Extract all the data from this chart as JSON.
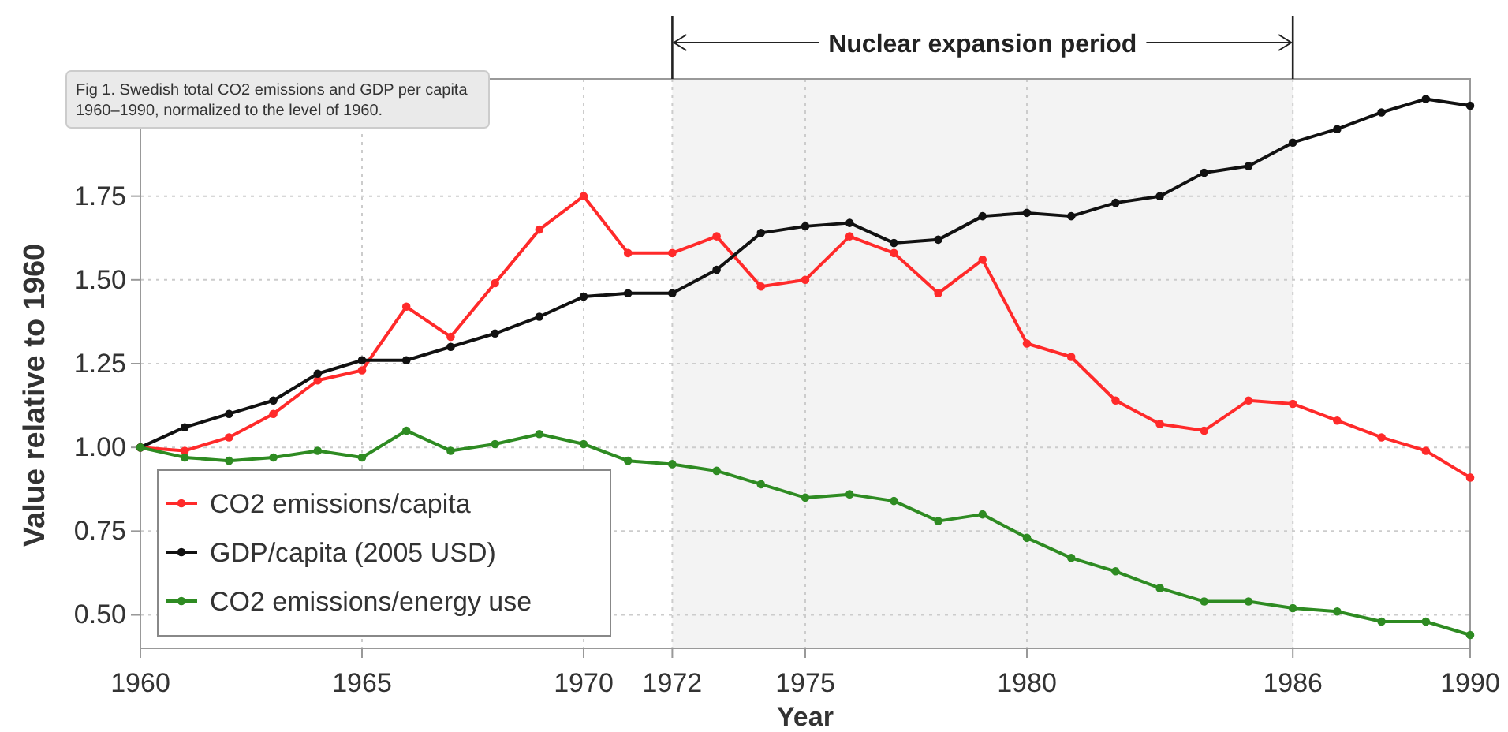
{
  "chart_data": {
    "type": "line",
    "xlabel": "Year",
    "ylabel": "Value relative to 1960",
    "x": [
      1960,
      1961,
      1962,
      1963,
      1964,
      1965,
      1966,
      1967,
      1968,
      1969,
      1970,
      1971,
      1972,
      1973,
      1974,
      1975,
      1976,
      1977,
      1978,
      1979,
      1980,
      1981,
      1982,
      1983,
      1984,
      1985,
      1986,
      1987,
      1988,
      1989,
      1990
    ],
    "series": [
      {
        "name": "CO2 emissions/capita",
        "color": "#ff2a2a",
        "values": [
          1.0,
          0.99,
          1.03,
          1.1,
          1.2,
          1.23,
          1.42,
          1.33,
          1.49,
          1.65,
          1.75,
          1.58,
          1.58,
          1.63,
          1.48,
          1.5,
          1.63,
          1.58,
          1.46,
          1.56,
          1.31,
          1.27,
          1.14,
          1.07,
          1.05,
          1.14,
          1.13,
          1.08,
          1.03,
          0.99,
          0.91
        ]
      },
      {
        "name": "GDP/capita (2005 USD)",
        "color": "#111111",
        "values": [
          1.0,
          1.06,
          1.1,
          1.14,
          1.22,
          1.26,
          1.26,
          1.3,
          1.34,
          1.39,
          1.45,
          1.46,
          1.46,
          1.53,
          1.64,
          1.66,
          1.67,
          1.61,
          1.62,
          1.69,
          1.7,
          1.69,
          1.73,
          1.75,
          1.82,
          1.84,
          1.91,
          1.95,
          2.0,
          2.04,
          2.02
        ]
      },
      {
        "name": "CO2 emissions/energy use",
        "color": "#2e8b22",
        "values": [
          1.0,
          0.97,
          0.96,
          0.97,
          0.99,
          0.97,
          1.05,
          0.99,
          1.01,
          1.04,
          1.01,
          0.96,
          0.95,
          0.93,
          0.89,
          0.85,
          0.86,
          0.84,
          0.78,
          0.8,
          0.73,
          0.67,
          0.63,
          0.58,
          0.54,
          0.54,
          0.52,
          0.51,
          0.48,
          0.48,
          0.44
        ]
      }
    ],
    "xlim": [
      1960,
      1990
    ],
    "xticks": [
      1960,
      1965,
      1970,
      1972,
      1975,
      1980,
      1986,
      1990
    ],
    "ylim": [
      0.4,
      2.1
    ],
    "yticks": [
      {
        "value": 0.5,
        "label": "0.50"
      },
      {
        "value": 0.75,
        "label": "0.75"
      },
      {
        "value": 1.0,
        "label": "1.00"
      },
      {
        "value": 1.25,
        "label": "1.25"
      },
      {
        "value": 1.5,
        "label": "1.50"
      },
      {
        "value": 1.75,
        "label": "1.75"
      }
    ],
    "bands": [
      {
        "axis": "x",
        "from": 1972,
        "to": 1986,
        "label": "Nuclear expansion period",
        "color": "#f3f3f3"
      }
    ],
    "annotations": [
      "Fig 1.  Swedish total CO2 emissions and GDP per capita 1960–1990, normalized to the level of 1960."
    ],
    "grid": true,
    "legend": "bottom left",
    "marker": "circle",
    "line_style": "solid"
  }
}
